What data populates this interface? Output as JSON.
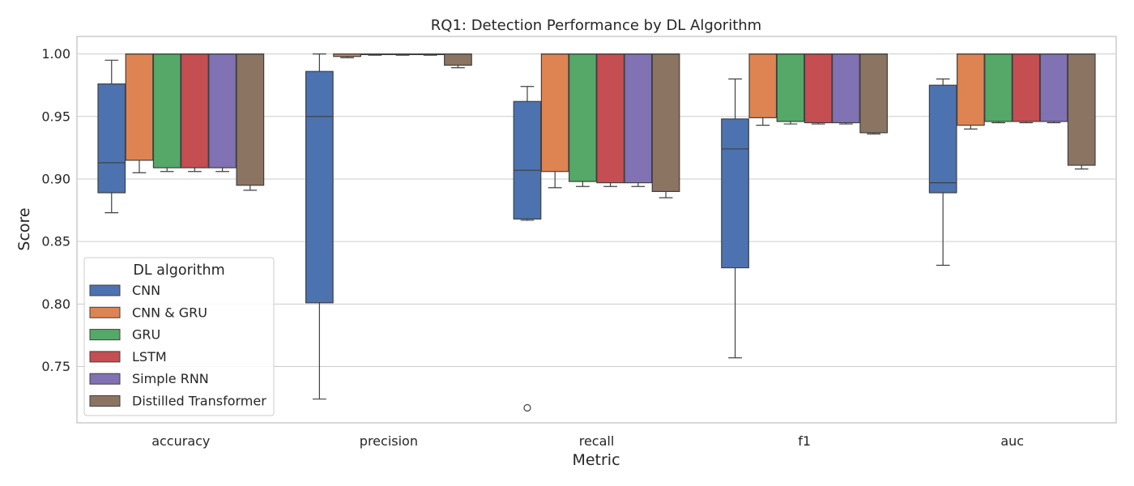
{
  "chart_data": {
    "type": "boxplot",
    "title": "RQ1: Detection Performance by DL Algorithm",
    "xlabel": "Metric",
    "ylabel": "Score",
    "ylim": [
      0.705,
      1.014
    ],
    "yticks": [
      "0.75",
      "0.80",
      "0.85",
      "0.90",
      "0.95",
      "1.00"
    ],
    "categories": [
      "accuracy",
      "precision",
      "recall",
      "f1",
      "auc"
    ],
    "grid": true,
    "legend": {
      "title": "DL algorithm",
      "position": "lower-left"
    },
    "series": [
      {
        "name": "CNN",
        "color": "#4c72b0",
        "boxes": [
          {
            "whislo": 0.873,
            "q1": 0.889,
            "med": 0.913,
            "q3": 0.976,
            "whishi": 0.995,
            "fliers": []
          },
          {
            "whislo": 0.724,
            "q1": 0.801,
            "med": 0.95,
            "q3": 0.986,
            "whishi": 1.0,
            "fliers": []
          },
          {
            "whislo": 0.867,
            "q1": 0.868,
            "med": 0.907,
            "q3": 0.962,
            "whishi": 0.974,
            "fliers": [
              0.717
            ]
          },
          {
            "whislo": 0.757,
            "q1": 0.829,
            "med": 0.924,
            "q3": 0.948,
            "whishi": 0.98,
            "fliers": []
          },
          {
            "whislo": 0.831,
            "q1": 0.889,
            "med": 0.897,
            "q3": 0.975,
            "whishi": 0.98,
            "fliers": []
          }
        ]
      },
      {
        "name": "CNN & GRU",
        "color": "#dd8452",
        "boxes": [
          {
            "whislo": 0.905,
            "q1": 0.915,
            "med": 1.0,
            "q3": 1.0,
            "whishi": 1.0,
            "fliers": []
          },
          {
            "whislo": 0.997,
            "q1": 0.998,
            "med": 1.0,
            "q3": 1.0,
            "whishi": 1.0,
            "fliers": []
          },
          {
            "whislo": 0.893,
            "q1": 0.906,
            "med": 1.0,
            "q3": 1.0,
            "whishi": 1.0,
            "fliers": []
          },
          {
            "whislo": 0.943,
            "q1": 0.949,
            "med": 1.0,
            "q3": 1.0,
            "whishi": 1.0,
            "fliers": []
          },
          {
            "whislo": 0.94,
            "q1": 0.943,
            "med": 1.0,
            "q3": 1.0,
            "whishi": 1.0,
            "fliers": []
          }
        ]
      },
      {
        "name": "GRU",
        "color": "#55a868",
        "boxes": [
          {
            "whislo": 0.906,
            "q1": 0.909,
            "med": 1.0,
            "q3": 1.0,
            "whishi": 1.0,
            "fliers": []
          },
          {
            "whislo": 0.999,
            "q1": 0.9995,
            "med": 1.0,
            "q3": 1.0,
            "whishi": 1.0,
            "fliers": []
          },
          {
            "whislo": 0.894,
            "q1": 0.898,
            "med": 1.0,
            "q3": 1.0,
            "whishi": 1.0,
            "fliers": []
          },
          {
            "whislo": 0.944,
            "q1": 0.946,
            "med": 1.0,
            "q3": 1.0,
            "whishi": 1.0,
            "fliers": []
          },
          {
            "whislo": 0.945,
            "q1": 0.946,
            "med": 1.0,
            "q3": 1.0,
            "whishi": 1.0,
            "fliers": []
          }
        ]
      },
      {
        "name": "LSTM",
        "color": "#c44e52",
        "boxes": [
          {
            "whislo": 0.906,
            "q1": 0.909,
            "med": 1.0,
            "q3": 1.0,
            "whishi": 1.0,
            "fliers": []
          },
          {
            "whislo": 0.999,
            "q1": 0.9995,
            "med": 1.0,
            "q3": 1.0,
            "whishi": 1.0,
            "fliers": []
          },
          {
            "whislo": 0.894,
            "q1": 0.897,
            "med": 1.0,
            "q3": 1.0,
            "whishi": 1.0,
            "fliers": []
          },
          {
            "whislo": 0.944,
            "q1": 0.945,
            "med": 1.0,
            "q3": 1.0,
            "whishi": 1.0,
            "fliers": []
          },
          {
            "whislo": 0.945,
            "q1": 0.946,
            "med": 1.0,
            "q3": 1.0,
            "whishi": 1.0,
            "fliers": []
          }
        ]
      },
      {
        "name": "Simple RNN",
        "color": "#8172b3",
        "boxes": [
          {
            "whislo": 0.906,
            "q1": 0.909,
            "med": 1.0,
            "q3": 1.0,
            "whishi": 1.0,
            "fliers": []
          },
          {
            "whislo": 0.999,
            "q1": 0.9995,
            "med": 1.0,
            "q3": 1.0,
            "whishi": 1.0,
            "fliers": []
          },
          {
            "whislo": 0.894,
            "q1": 0.897,
            "med": 1.0,
            "q3": 1.0,
            "whishi": 1.0,
            "fliers": []
          },
          {
            "whislo": 0.944,
            "q1": 0.945,
            "med": 1.0,
            "q3": 1.0,
            "whishi": 1.0,
            "fliers": []
          },
          {
            "whislo": 0.945,
            "q1": 0.946,
            "med": 1.0,
            "q3": 1.0,
            "whishi": 1.0,
            "fliers": []
          }
        ]
      },
      {
        "name": "Distilled Transformer",
        "color": "#8c7462",
        "boxes": [
          {
            "whislo": 0.891,
            "q1": 0.895,
            "med": 1.0,
            "q3": 1.0,
            "whishi": 1.0,
            "fliers": []
          },
          {
            "whislo": 0.989,
            "q1": 0.991,
            "med": 1.0,
            "q3": 1.0,
            "whishi": 1.0,
            "fliers": []
          },
          {
            "whislo": 0.885,
            "q1": 0.89,
            "med": 1.0,
            "q3": 1.0,
            "whishi": 1.0,
            "fliers": []
          },
          {
            "whislo": 0.936,
            "q1": 0.937,
            "med": 1.0,
            "q3": 1.0,
            "whishi": 1.0,
            "fliers": []
          },
          {
            "whislo": 0.908,
            "q1": 0.911,
            "med": 1.0,
            "q3": 1.0,
            "whishi": 1.0,
            "fliers": []
          }
        ]
      }
    ]
  }
}
